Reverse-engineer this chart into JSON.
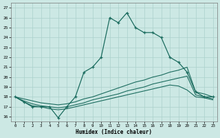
{
  "xlabel": "Humidex (Indice chaleur)",
  "x_ticks": [
    0,
    1,
    2,
    3,
    4,
    5,
    6,
    7,
    8,
    9,
    10,
    11,
    12,
    13,
    14,
    15,
    16,
    17,
    18,
    19,
    20,
    21,
    22,
    23
  ],
  "y_ticks": [
    16,
    17,
    18,
    19,
    20,
    21,
    22,
    23,
    24,
    25,
    26,
    27
  ],
  "ylim": [
    15.5,
    27.5
  ],
  "xlim": [
    -0.5,
    23.5
  ],
  "bg_color": "#cce8e4",
  "grid_color": "#aad0cb",
  "line_color": "#1a6b5e",
  "main_curve": [
    18.0,
    17.5,
    17.0,
    17.0,
    17.0,
    15.9,
    17.0,
    18.0,
    20.5,
    21.0,
    22.0,
    26.0,
    25.5,
    26.5,
    25.0,
    24.5,
    24.5,
    24.0,
    22.0,
    21.5,
    20.5,
    18.5,
    18.0,
    18.0
  ],
  "line_top": [
    18.0,
    17.8,
    17.6,
    17.4,
    17.3,
    17.2,
    17.3,
    17.5,
    17.8,
    18.0,
    18.3,
    18.6,
    18.9,
    19.2,
    19.5,
    19.7,
    20.0,
    20.2,
    20.5,
    20.7,
    21.0,
    18.5,
    18.3,
    18.0
  ],
  "line_mid": [
    18.0,
    17.6,
    17.3,
    17.1,
    17.0,
    16.9,
    17.0,
    17.2,
    17.4,
    17.7,
    17.9,
    18.1,
    18.3,
    18.6,
    18.8,
    19.0,
    19.3,
    19.5,
    19.7,
    19.9,
    20.1,
    18.2,
    18.0,
    17.8
  ],
  "line_bot": [
    18.0,
    17.5,
    17.1,
    17.0,
    16.8,
    16.7,
    16.8,
    17.0,
    17.2,
    17.4,
    17.6,
    17.8,
    18.0,
    18.2,
    18.4,
    18.6,
    18.8,
    19.0,
    19.2,
    19.1,
    18.7,
    18.0,
    17.9,
    17.7
  ]
}
